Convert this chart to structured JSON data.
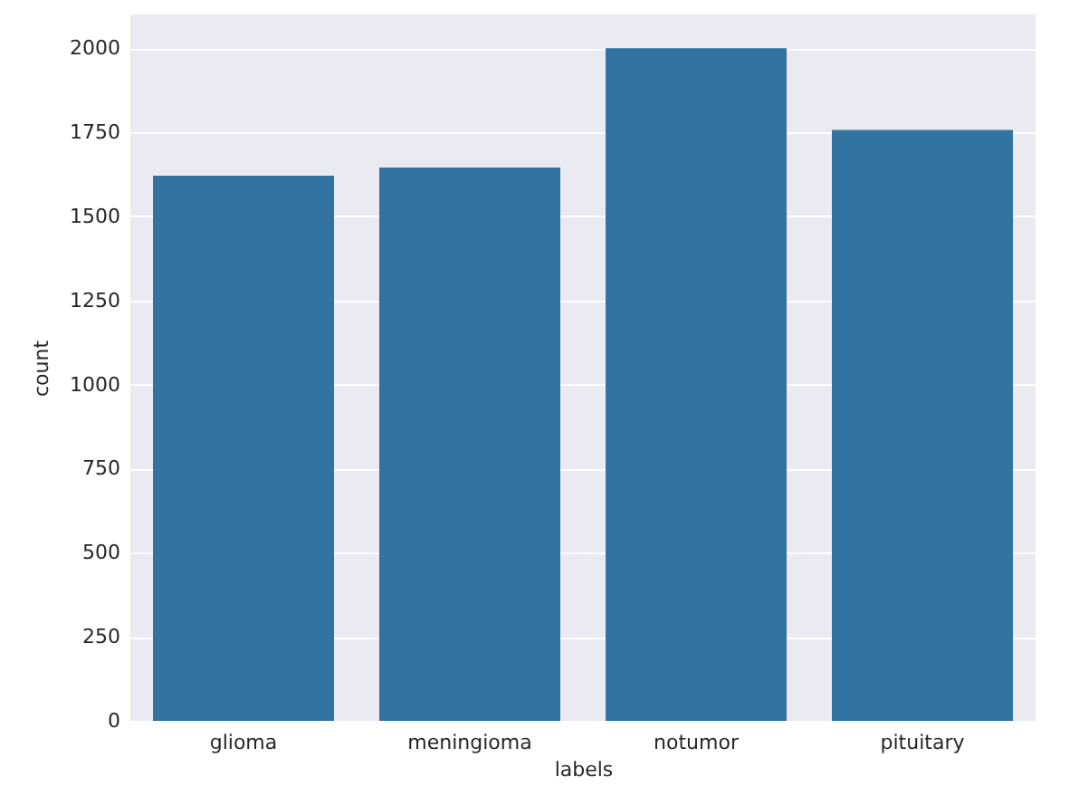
{
  "chart_data": {
    "type": "bar",
    "xlabel": "labels",
    "ylabel": "count",
    "categories": [
      "glioma",
      "meningioma",
      "notumor",
      "pituitary"
    ],
    "values": [
      1621,
      1645,
      2000,
      1757
    ],
    "color": "#3274a1",
    "ylim": [
      0,
      2100
    ],
    "yticks": [
      0,
      250,
      500,
      750,
      1000,
      1250,
      1500,
      1750,
      2000
    ],
    "grid": "y"
  }
}
